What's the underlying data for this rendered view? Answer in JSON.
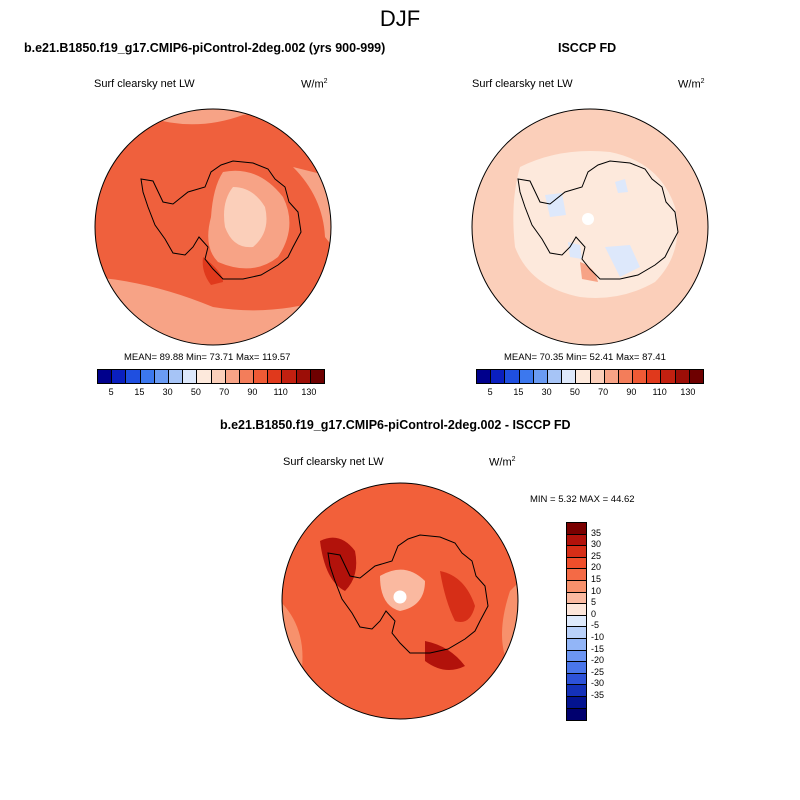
{
  "figure": {
    "season": "DJF"
  },
  "panels": {
    "model": {
      "title": "b.e21.B1850.f19_g17.CMIP6-piControl-2deg.002 (yrs 900-999)",
      "variable": "Surf clearsky net LW",
      "units_base": "W/m",
      "units_exp": "2",
      "stats": "MEAN=  89.88  Min=  73.71  Max= 119.57",
      "fill_color": "#ef603d"
    },
    "obs": {
      "title": "ISCCP FD",
      "variable": "Surf clearsky net LW",
      "units_base": "W/m",
      "units_exp": "2",
      "stats": "MEAN=  70.35  Min=  52.41  Max=  87.41",
      "fill_color": "#fbcfba"
    },
    "diff": {
      "title": "b.e21.B1850.f19_g17.CMIP6-piControl-2deg.002 - ISCCP FD",
      "variable": "Surf clearsky net LW",
      "units_base": "W/m",
      "units_exp": "2",
      "stats": "MIN =   5.32 MAX =  44.62",
      "fill_color": "#f2603a"
    }
  },
  "abs_colorbar": {
    "colors": [
      "#00008c",
      "#0a1fbf",
      "#1f4fe0",
      "#3c78ee",
      "#6a9bf3",
      "#a6c4f6",
      "#dde8fb",
      "#fde9dc",
      "#fbcfba",
      "#f7a386",
      "#f37d5a",
      "#ef5a35",
      "#e0391c",
      "#c22010",
      "#9c0e07",
      "#6e0000"
    ],
    "tick_labels": [
      "5",
      "15",
      "30",
      "50",
      "70",
      "90",
      "110",
      "130"
    ]
  },
  "diff_colorbar": {
    "colors": [
      "#7a0000",
      "#b2120b",
      "#d62e17",
      "#ef4e2b",
      "#f46a45",
      "#f7916c",
      "#fab9a0",
      "#fde6da",
      "#deeafc",
      "#b9d1fa",
      "#92b5f7",
      "#6c95f2",
      "#4a76ea",
      "#2d52d8",
      "#1431b8",
      "#031390",
      "#00006e"
    ],
    "tick_labels": [
      "35",
      "30",
      "25",
      "20",
      "15",
      "10",
      "5",
      "0",
      "-5",
      "-10",
      "-15",
      "-20",
      "-25",
      "-30",
      "-35"
    ]
  }
}
